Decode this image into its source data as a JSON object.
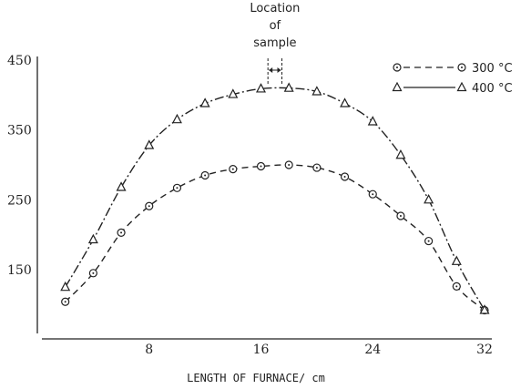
{
  "chart_data": {
    "type": "line",
    "title": "",
    "xlabel": "LENGTH OF FURNACE/ cm",
    "ylabel": "",
    "xlim": [
      0,
      32
    ],
    "ylim": [
      85,
      450
    ],
    "x_ticks": [
      8,
      16,
      24,
      32
    ],
    "y_ticks": [
      150,
      250,
      350,
      450
    ],
    "grid": false,
    "legend_position": "top-right",
    "annotation": {
      "lines": [
        "Location",
        "of",
        "sample"
      ],
      "x_range": [
        16.5,
        17.5
      ]
    },
    "series": [
      {
        "name": "300 °C",
        "marker": "circle",
        "line_style": "dashed",
        "color": "#222222",
        "points": [
          [
            2,
            104
          ],
          [
            4,
            145
          ],
          [
            6,
            203
          ],
          [
            8,
            241
          ],
          [
            10,
            267
          ],
          [
            12,
            285
          ],
          [
            14,
            294
          ],
          [
            16,
            298
          ],
          [
            18,
            300
          ],
          [
            20,
            296
          ],
          [
            22,
            283
          ],
          [
            24,
            258
          ],
          [
            26,
            227
          ],
          [
            28,
            191
          ],
          [
            30,
            126
          ],
          [
            32,
            92
          ]
        ]
      },
      {
        "name": "400 °C",
        "marker": "triangle",
        "line_style": "dash-dot",
        "color": "#222222",
        "points": [
          [
            2,
            125
          ],
          [
            4,
            193
          ],
          [
            6,
            268
          ],
          [
            8,
            328
          ],
          [
            10,
            365
          ],
          [
            12,
            388
          ],
          [
            14,
            401
          ],
          [
            16,
            409
          ],
          [
            18,
            410
          ],
          [
            20,
            405
          ],
          [
            22,
            388
          ],
          [
            24,
            362
          ],
          [
            26,
            314
          ],
          [
            28,
            250
          ],
          [
            30,
            162
          ],
          [
            32,
            92
          ]
        ]
      }
    ]
  }
}
